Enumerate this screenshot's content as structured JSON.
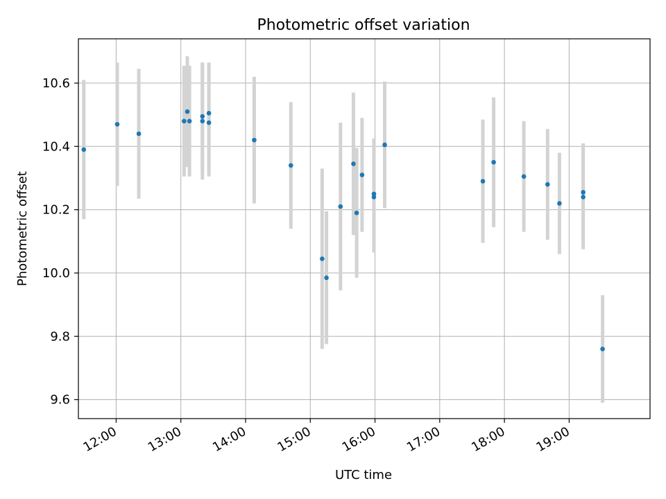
{
  "chart_data": {
    "type": "scatter",
    "title": "Photometric offset variation",
    "xlabel": "UTC time",
    "ylabel": "Photometric offset",
    "x_unit": "hours UTC",
    "xlim": [
      "11:25",
      "20:15"
    ],
    "ylim": [
      9.54,
      10.74
    ],
    "xticks": [
      "12:00",
      "13:00",
      "14:00",
      "15:00",
      "16:00",
      "17:00",
      "18:00",
      "19:00"
    ],
    "yticks": [
      "9.6",
      "9.8",
      "10.0",
      "10.2",
      "10.4",
      "10.6"
    ],
    "grid": true,
    "marker_color": "#1f77b4",
    "errorbar_color": "#d3d3d3",
    "points": [
      {
        "time": "11:30",
        "value": 10.39,
        "error": 0.22
      },
      {
        "time": "12:01",
        "value": 10.47,
        "error": 0.195
      },
      {
        "time": "12:21",
        "value": 10.44,
        "error": 0.205
      },
      {
        "time": "13:03",
        "value": 10.48,
        "error": 0.175
      },
      {
        "time": "13:06",
        "value": 10.51,
        "error": 0.175
      },
      {
        "time": "13:08",
        "value": 10.48,
        "error": 0.175
      },
      {
        "time": "13:20",
        "value": 10.48,
        "error": 0.185
      },
      {
        "time": "13:20",
        "value": 10.495,
        "error": 0.17
      },
      {
        "time": "13:26",
        "value": 10.505,
        "error": 0.16
      },
      {
        "time": "13:26",
        "value": 10.475,
        "error": 0.17
      },
      {
        "time": "14:08",
        "value": 10.42,
        "error": 0.2
      },
      {
        "time": "14:42",
        "value": 10.34,
        "error": 0.2
      },
      {
        "time": "15:11",
        "value": 10.045,
        "error": 0.285
      },
      {
        "time": "15:15",
        "value": 9.985,
        "error": 0.21
      },
      {
        "time": "15:28",
        "value": 10.21,
        "error": 0.265
      },
      {
        "time": "15:40",
        "value": 10.345,
        "error": 0.225
      },
      {
        "time": "15:43",
        "value": 10.19,
        "error": 0.205
      },
      {
        "time": "15:48",
        "value": 10.31,
        "error": 0.18
      },
      {
        "time": "15:59",
        "value": 10.25,
        "error": 0.175
      },
      {
        "time": "15:59",
        "value": 10.24,
        "error": 0.175
      },
      {
        "time": "16:09",
        "value": 10.405,
        "error": 0.2
      },
      {
        "time": "17:40",
        "value": 10.29,
        "error": 0.195
      },
      {
        "time": "17:50",
        "value": 10.35,
        "error": 0.205
      },
      {
        "time": "18:18",
        "value": 10.305,
        "error": 0.175
      },
      {
        "time": "18:40",
        "value": 10.28,
        "error": 0.175
      },
      {
        "time": "18:51",
        "value": 10.22,
        "error": 0.16
      },
      {
        "time": "19:13",
        "value": 10.255,
        "error": 0.155
      },
      {
        "time": "19:13",
        "value": 10.24,
        "error": 0.165
      },
      {
        "time": "19:31",
        "value": 9.76,
        "error": 0.17
      }
    ]
  }
}
